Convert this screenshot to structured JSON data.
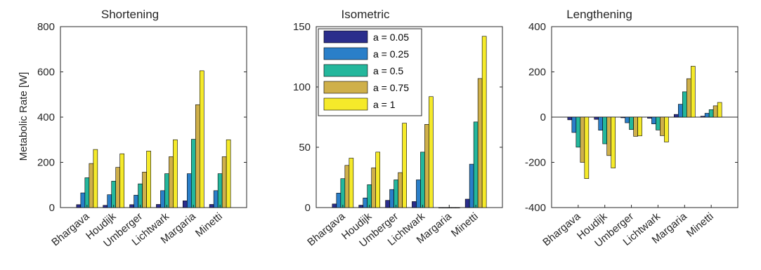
{
  "colors": [
    "#2b2e8c",
    "#2a7fc9",
    "#24b79c",
    "#cfb04a",
    "#f5ea2a"
  ],
  "legend": [
    "a = 0.05",
    "a = 0.25",
    "a = 0.5",
    "a = 0.75",
    "a = 1"
  ],
  "chart_data": [
    {
      "type": "bar",
      "title": "Shortening",
      "ylabel": "Metabolic Rate [W]",
      "categories": [
        "Bhargava",
        "Houdijk",
        "Umberger",
        "Lichtwark",
        "Margaria",
        "Minetti"
      ],
      "ylim": [
        0,
        800
      ],
      "yticks": [
        0,
        200,
        400,
        600,
        800
      ],
      "series": [
        {
          "name": "a = 0.05",
          "values": [
            13,
            10,
            13,
            14,
            30,
            14
          ]
        },
        {
          "name": "a = 0.25",
          "values": [
            65,
            57,
            55,
            75,
            150,
            75
          ]
        },
        {
          "name": "a = 0.5",
          "values": [
            132,
            117,
            105,
            150,
            302,
            150
          ]
        },
        {
          "name": "a = 0.75",
          "values": [
            195,
            178,
            157,
            225,
            455,
            225
          ]
        },
        {
          "name": "a = 1",
          "values": [
            257,
            238,
            250,
            300,
            605,
            300
          ]
        }
      ]
    },
    {
      "type": "bar",
      "title": "Isometric",
      "ylabel": "",
      "categories": [
        "Bhargava",
        "Houdijk",
        "Umberger",
        "Lichtwark",
        "Margaria",
        "Minetti"
      ],
      "ylim": [
        0,
        150
      ],
      "yticks": [
        0,
        50,
        100,
        150
      ],
      "series": [
        {
          "name": "a = 0.05",
          "values": [
            3,
            2,
            6,
            5,
            0,
            7
          ]
        },
        {
          "name": "a = 0.25",
          "values": [
            12,
            8,
            15,
            23,
            0,
            36
          ]
        },
        {
          "name": "a = 0.5",
          "values": [
            24,
            19,
            23,
            46,
            0,
            71
          ]
        },
        {
          "name": "a = 0.75",
          "values": [
            35,
            33,
            29,
            69,
            0,
            107
          ]
        },
        {
          "name": "a = 1",
          "values": [
            41,
            46,
            70,
            92,
            0,
            142
          ]
        }
      ]
    },
    {
      "type": "bar",
      "title": "Lengthening",
      "ylabel": "",
      "categories": [
        "Bhargava",
        "Houdijk",
        "Umberger",
        "Lichtwark",
        "Margaria",
        "Minetti"
      ],
      "ylim": [
        -400,
        400
      ],
      "yticks": [
        -400,
        -200,
        0,
        200,
        400
      ],
      "series": [
        {
          "name": "a = 0.05",
          "values": [
            -12,
            -10,
            -3,
            -5,
            12,
            4
          ]
        },
        {
          "name": "a = 0.25",
          "values": [
            -68,
            -58,
            -25,
            -30,
            57,
            17
          ]
        },
        {
          "name": "a = 0.5",
          "values": [
            -133,
            -118,
            -55,
            -57,
            112,
            33
          ]
        },
        {
          "name": "a = 0.75",
          "values": [
            -200,
            -170,
            -85,
            -82,
            170,
            50
          ]
        },
        {
          "name": "a = 1",
          "values": [
            -272,
            -225,
            -83,
            -110,
            225,
            65
          ]
        }
      ]
    }
  ]
}
